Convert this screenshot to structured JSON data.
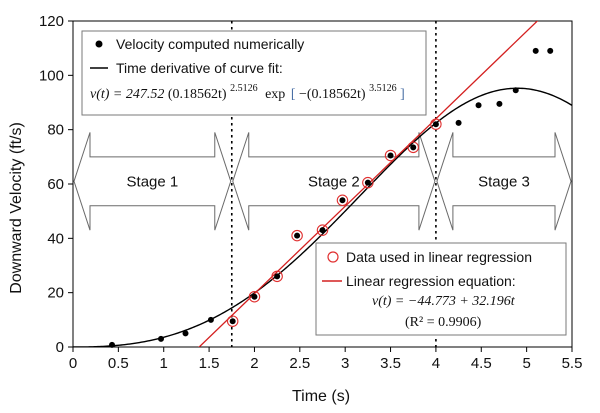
{
  "chart_data": {
    "type": "scatter",
    "title": "",
    "xlabel": "Time (s)",
    "ylabel": "Downward Velocity (ft/s)",
    "xlim": [
      0,
      5.5
    ],
    "ylim": [
      0,
      120
    ],
    "xticks": [
      "0",
      "0.5",
      "1",
      "1.5",
      "2",
      "2.5",
      "3",
      "3.5",
      "4",
      "4.5",
      "5",
      "5.5"
    ],
    "yticks": [
      "0",
      "20",
      "40",
      "60",
      "80",
      "100",
      "120"
    ],
    "series": [
      {
        "name": "Velocity computed numerically",
        "marker": "filled-circle",
        "color": "#000000",
        "x": [
          0.43,
          0.97,
          1.24,
          1.52,
          1.76,
          2.0,
          2.25,
          2.47,
          2.75,
          2.97,
          3.25,
          3.5,
          3.75,
          4.0,
          4.25,
          4.47,
          4.7,
          4.88,
          5.1,
          5.26
        ],
        "y": [
          0.8,
          3.0,
          5.0,
          10.0,
          9.5,
          18.5,
          26.0,
          41.0,
          43.0,
          54.0,
          60.5,
          70.5,
          73.5,
          82.0,
          82.5,
          89.0,
          89.5,
          94.5,
          109.0,
          109.0
        ]
      },
      {
        "name": "Data used in linear regression",
        "marker": "open-circle",
        "color": "#e03030",
        "x": [
          1.76,
          2.0,
          2.25,
          2.47,
          2.75,
          2.97,
          3.25,
          3.5,
          3.75,
          4.0
        ],
        "y": [
          9.5,
          18.5,
          26.0,
          41.0,
          43.0,
          54.0,
          60.5,
          70.5,
          73.5,
          82.0
        ]
      }
    ],
    "curves": [
      {
        "name": "Time derivative of curve fit:",
        "color": "#000000",
        "equation": "v(t) = 247.52(0.18562t)^2.5126 exp[-(0.18562t)^3.5126]",
        "A": 247.52,
        "k": 0.18562,
        "p": 2.5126,
        "q": 3.5126,
        "t_range": [
          0,
          5.5
        ]
      },
      {
        "name": "Linear regression equation:",
        "color": "#d42020",
        "equation": "v(t) = -44.773 + 32.196t",
        "intercept": -44.773,
        "slope": 32.196,
        "r2_label": "(R² = 0.9906)"
      }
    ],
    "vlines": [
      1.75,
      4.0
    ],
    "stages": [
      {
        "label": "Stage 1",
        "from": 0.0,
        "to": 1.75
      },
      {
        "label": "Stage 2",
        "from": 1.75,
        "to": 4.0
      },
      {
        "label": "Stage 3",
        "from": 4.0,
        "to": 5.5
      }
    ],
    "stage_arrow_y": [
      52,
      70
    ],
    "legend_top": {
      "entry1": "Velocity computed numerically",
      "entry2": "Time derivative of curve fit:"
    },
    "legend_bottom": {
      "entry1": "Data used in linear regression",
      "entry2": "Linear regression equation:"
    },
    "equation_labels": {
      "curve_lhs": "v(t) = 247.52",
      "curve_base1": "(0.18562t)",
      "curve_exp1": "2.5126",
      "curve_exp_word": "exp",
      "curve_base2": "−(0.18562t)",
      "curve_exp2": "3.5126",
      "linear_main": "v(t) = −44.773 + 32.196t",
      "linear_r2": "(R² = 0.9906)"
    }
  }
}
